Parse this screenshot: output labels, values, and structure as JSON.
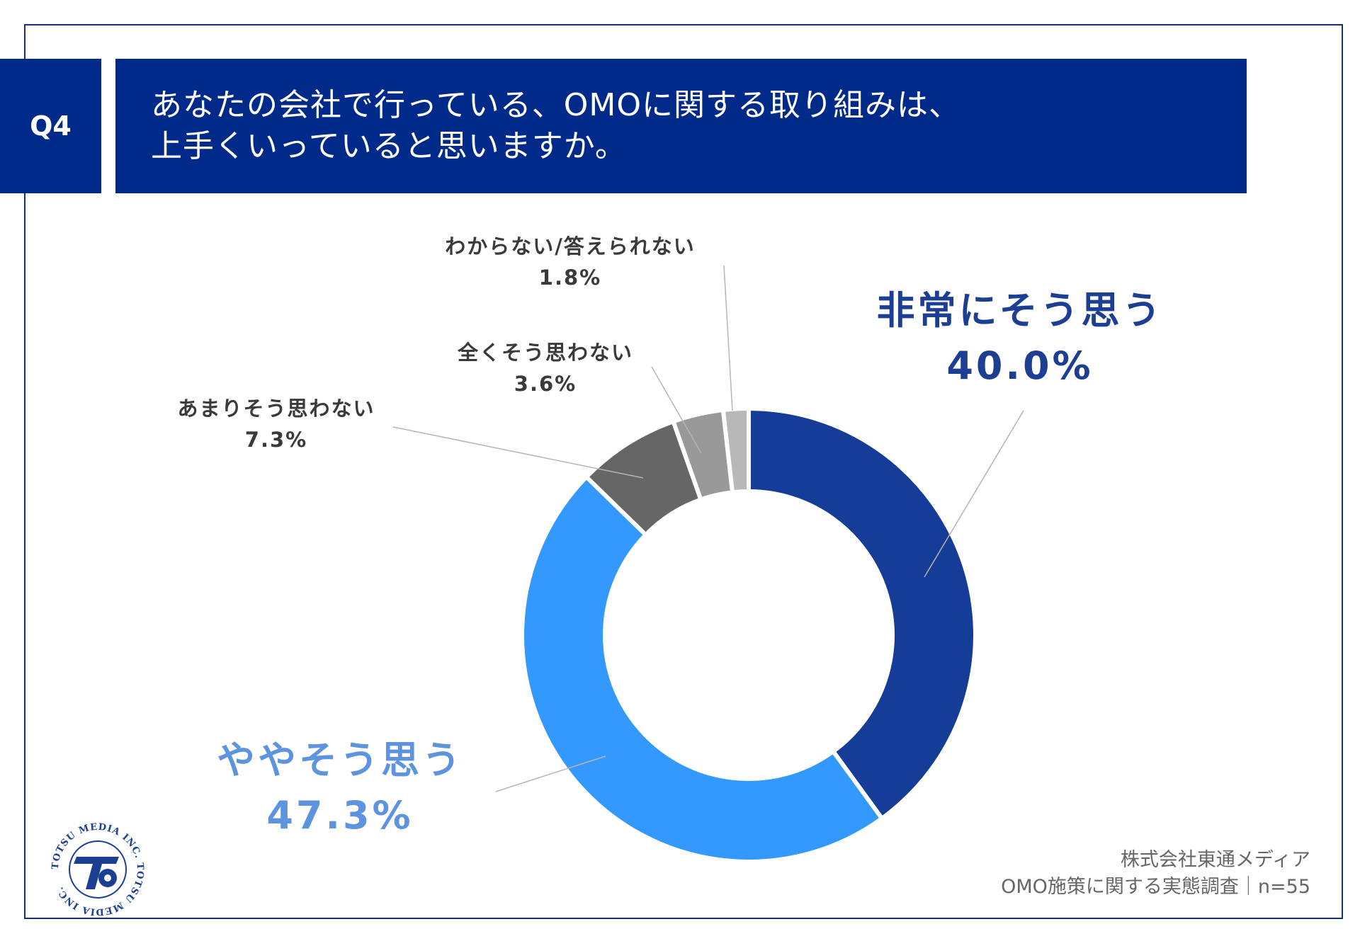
{
  "header": {
    "q_label": "Q4",
    "title_line1": "あなたの会社で行っている、OMOに関する取り組みは、",
    "title_line2": "上手くいっていると思いますか。"
  },
  "chart_data": {
    "type": "pie",
    "donut": true,
    "categories": [
      "非常にそう思う",
      "ややそう思う",
      "あまりそう思わない",
      "全くそう思わない",
      "わからない/答えられない"
    ],
    "values": [
      40.0,
      47.3,
      7.3,
      3.6,
      1.8
    ],
    "value_labels": [
      "40.0%",
      "47.3%",
      "7.3%",
      "3.6%",
      "1.8%"
    ],
    "colors": [
      "#153c96",
      "#3399ff",
      "#666666",
      "#999999",
      "#b8b8b8"
    ],
    "label_color_big1": "#1c3f94",
    "label_color_big2": "#5e93e0"
  },
  "footer": {
    "company": "株式会社東通メディア",
    "survey": "OMO施策に関する実態調査｜n=55"
  },
  "logo": {
    "ring_text": "TOTSU MEDIA INC. TOTSU MEDIA INC.",
    "mark_color": "#1c3f94"
  }
}
